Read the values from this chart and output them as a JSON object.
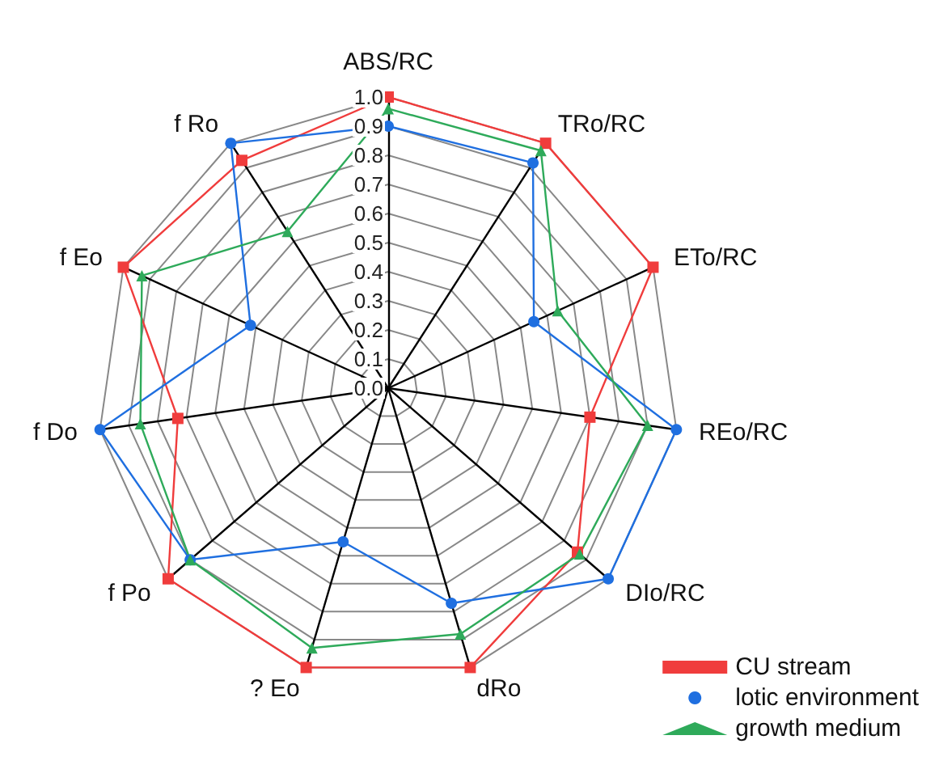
{
  "chart_data": {
    "type": "radar",
    "categories": [
      "ABS/RC",
      "TRo/RC",
      "ETo/RC",
      "REo/RC",
      "DIo/RC",
      "dRo",
      "? Eo",
      "f Po",
      "f Do",
      "f Eo",
      "f Ro"
    ],
    "ylim": [
      0,
      1
    ],
    "yticks": [
      {
        "value": 0,
        "label": "0.0"
      },
      0.1,
      0.2,
      0.3,
      0.4,
      0.5,
      0.6,
      0.7,
      0.8,
      0.9,
      {
        "value": 1,
        "label": "1.0"
      }
    ],
    "grid": true,
    "legend": "bottom right",
    "line_style": "solid",
    "series": [
      {
        "name": "CU stream",
        "color": "#f03c3c",
        "marker": "square",
        "values": [
          1.0,
          1.0,
          1.0,
          0.7,
          0.86,
          1.0,
          1.0,
          1.0,
          0.73,
          1.0,
          0.93
        ]
      },
      {
        "name": "lotic environment",
        "color": "#1f6fe0",
        "marker": "circle",
        "values": [
          0.9,
          0.92,
          0.55,
          1.0,
          1.0,
          0.77,
          0.55,
          0.9,
          1.0,
          0.52,
          1.0
        ]
      },
      {
        "name": "growth medium",
        "color": "#2eaa5a",
        "marker": "triangle",
        "values": [
          0.96,
          0.97,
          0.64,
          0.9,
          0.87,
          0.88,
          0.93,
          0.9,
          0.86,
          0.93,
          0.64
        ]
      }
    ]
  }
}
